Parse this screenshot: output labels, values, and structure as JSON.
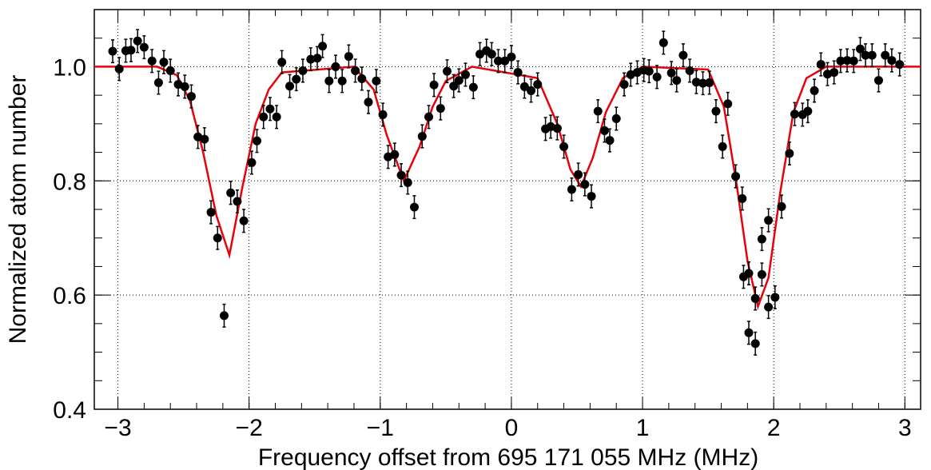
{
  "chart_data": {
    "type": "scatter",
    "xlabel": "Frequency offset from 695 171 055 MHz (MHz)",
    "ylabel": "Normalized atom number",
    "xlim": [
      -3.18,
      3.12
    ],
    "ylim": [
      0.4,
      1.1
    ],
    "xticks": [
      {
        "value": -3,
        "label": "−3"
      },
      {
        "value": -2,
        "label": "−2"
      },
      {
        "value": -1,
        "label": "−1"
      },
      0,
      1,
      2,
      3
    ],
    "yticks": [
      0.4,
      0.6,
      0.8,
      {
        "value": 1.0,
        "label": "1.0"
      }
    ],
    "grid": true,
    "points": {
      "color": "#000000",
      "x": [
        -3.04,
        -2.99,
        -2.94,
        -2.9,
        -2.85,
        -2.8,
        -2.74,
        -2.69,
        -2.65,
        -2.6,
        -2.54,
        -2.49,
        -2.44,
        -2.39,
        -2.34,
        -2.29,
        -2.24,
        -2.19,
        -2.14,
        -2.09,
        -2.04,
        -1.98,
        -1.94,
        -1.89,
        -1.84,
        -1.79,
        -1.75,
        -1.69,
        -1.64,
        -1.59,
        -1.53,
        -1.48,
        -1.44,
        -1.39,
        -1.34,
        -1.29,
        -1.24,
        -1.19,
        -1.14,
        -1.09,
        -1.03,
        -0.98,
        -0.94,
        -0.89,
        -0.84,
        -0.79,
        -0.74,
        -0.68,
        -0.63,
        -0.59,
        -0.54,
        -0.49,
        -0.44,
        -0.4,
        -0.35,
        -0.29,
        -0.24,
        -0.19,
        -0.15,
        -0.1,
        -0.05,
        0.0,
        0.05,
        0.1,
        0.15,
        0.2,
        0.26,
        0.3,
        0.35,
        0.4,
        0.46,
        0.51,
        0.56,
        0.61,
        0.66,
        0.71,
        0.75,
        0.8,
        0.86,
        0.91,
        0.96,
        1.01,
        1.05,
        1.11,
        1.16,
        1.22,
        1.26,
        1.31,
        1.36,
        1.41,
        1.46,
        1.51,
        1.56,
        1.61,
        1.65,
        1.71,
        1.76,
        1.77,
        1.81,
        1.81,
        1.86,
        1.86,
        1.91,
        1.91,
        1.96,
        1.96,
        2.01,
        2.06,
        2.12,
        2.16,
        2.22,
        2.26,
        2.31,
        2.36,
        2.41,
        2.46,
        2.51,
        2.56,
        2.61,
        2.66,
        2.7,
        2.75,
        2.8,
        2.85,
        2.9,
        2.96
      ],
      "values": [
        1.027,
        0.996,
        1.028,
        1.029,
        1.045,
        1.034,
        1.01,
        0.972,
        1.008,
        0.993,
        0.969,
        0.965,
        0.948,
        0.877,
        0.873,
        0.745,
        0.7,
        0.564,
        0.779,
        0.764,
        0.73,
        0.832,
        0.87,
        0.912,
        0.926,
        0.912,
        1.008,
        0.966,
        0.978,
        0.993,
        1.013,
        1.015,
        1.036,
        0.975,
        1.0,
        0.975,
        1.018,
        0.993,
        0.979,
        0.938,
        0.975,
        0.916,
        0.842,
        0.846,
        0.81,
        0.797,
        0.754,
        0.878,
        0.912,
        0.968,
        0.927,
        0.992,
        0.966,
        0.976,
        0.986,
        0.964,
        1.022,
        1.028,
        1.022,
        1.01,
        1.01,
        1.017,
        0.99,
        0.965,
        0.958,
        0.969,
        0.891,
        0.895,
        0.892,
        0.86,
        0.785,
        0.811,
        0.794,
        0.773,
        0.922,
        0.888,
        0.871,
        0.909,
        0.969,
        0.986,
        0.99,
        0.994,
        0.992,
        0.982,
        1.042,
        0.989,
        0.976,
        1.02,
        0.993,
        0.973,
        0.971,
        0.972,
        0.922,
        0.86,
        0.935,
        0.808,
        0.769,
        0.632,
        0.638,
        0.534,
        0.594,
        0.515,
        0.698,
        0.636,
        0.731,
        0.579,
        0.596,
        0.755,
        0.848,
        0.917,
        0.916,
        0.922,
        0.958,
        1.004,
        0.987,
        0.99,
        1.01,
        1.011,
        1.01,
        1.031,
        1.02,
        1.02,
        0.976,
        1.02,
        1.011,
        1.004
      ],
      "errors": [
        0.02,
        0.02,
        0.02,
        0.02,
        0.02,
        0.02,
        0.02,
        0.02,
        0.02,
        0.02,
        0.02,
        0.02,
        0.02,
        0.02,
        0.02,
        0.02,
        0.02,
        0.02,
        0.02,
        0.02,
        0.02,
        0.02,
        0.02,
        0.02,
        0.02,
        0.02,
        0.02,
        0.02,
        0.02,
        0.02,
        0.02,
        0.02,
        0.02,
        0.02,
        0.02,
        0.02,
        0.02,
        0.02,
        0.02,
        0.02,
        0.02,
        0.02,
        0.02,
        0.02,
        0.02,
        0.02,
        0.02,
        0.02,
        0.02,
        0.02,
        0.02,
        0.02,
        0.02,
        0.02,
        0.02,
        0.02,
        0.02,
        0.02,
        0.02,
        0.02,
        0.02,
        0.02,
        0.02,
        0.02,
        0.02,
        0.02,
        0.02,
        0.02,
        0.02,
        0.02,
        0.02,
        0.02,
        0.02,
        0.02,
        0.02,
        0.02,
        0.02,
        0.02,
        0.02,
        0.02,
        0.02,
        0.02,
        0.02,
        0.02,
        0.02,
        0.02,
        0.02,
        0.02,
        0.02,
        0.02,
        0.02,
        0.02,
        0.02,
        0.02,
        0.02,
        0.02,
        0.02,
        0.02,
        0.02,
        0.02,
        0.02,
        0.02,
        0.02,
        0.02,
        0.02,
        0.02,
        0.02,
        0.02,
        0.02,
        0.02,
        0.02,
        0.02,
        0.02,
        0.02,
        0.02,
        0.02,
        0.02,
        0.02,
        0.02,
        0.02,
        0.02,
        0.02,
        0.02,
        0.02,
        0.02,
        0.02
      ]
    },
    "fit": {
      "color": "#e8000b",
      "x": [
        -3.18,
        -2.7,
        -2.55,
        -2.45,
        -2.35,
        -2.25,
        -2.15,
        -2.05,
        -1.95,
        -1.85,
        -1.75,
        -1.2,
        -1.05,
        -0.95,
        -0.82,
        -0.7,
        -0.6,
        -0.5,
        -0.3,
        0.2,
        0.35,
        0.45,
        0.53,
        0.62,
        0.72,
        0.85,
        1.0,
        1.5,
        1.62,
        1.72,
        1.8,
        1.88,
        1.96,
        2.05,
        2.15,
        2.25,
        2.4,
        3.12
      ],
      "values": [
        1.0,
        1.0,
        0.985,
        0.94,
        0.85,
        0.74,
        0.67,
        0.79,
        0.9,
        0.96,
        0.99,
        1.0,
        0.96,
        0.88,
        0.8,
        0.86,
        0.93,
        0.975,
        1.0,
        0.98,
        0.9,
        0.82,
        0.79,
        0.84,
        0.92,
        0.98,
        1.0,
        0.995,
        0.93,
        0.79,
        0.66,
        0.58,
        0.63,
        0.78,
        0.92,
        0.98,
        1.0,
        1.0
      ]
    }
  }
}
